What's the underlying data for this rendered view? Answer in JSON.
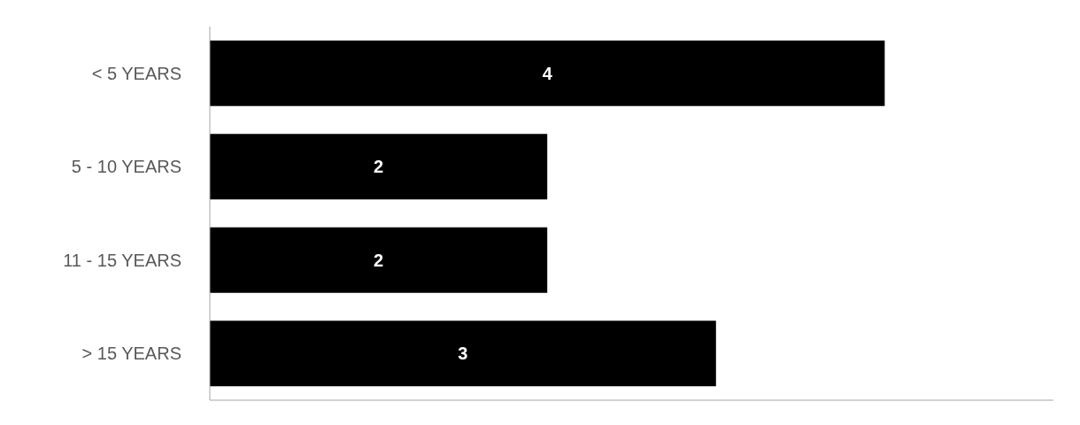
{
  "chart_data": {
    "type": "bar",
    "orientation": "horizontal",
    "categories": [
      "< 5 YEARS",
      "5 - 10 YEARS",
      "11 - 15 YEARS",
      "> 15 YEARS"
    ],
    "values": [
      4,
      2,
      2,
      3
    ],
    "color": "#000000",
    "xlim": [
      0,
      5
    ],
    "tick_labels": "y",
    "data_labels": true
  }
}
